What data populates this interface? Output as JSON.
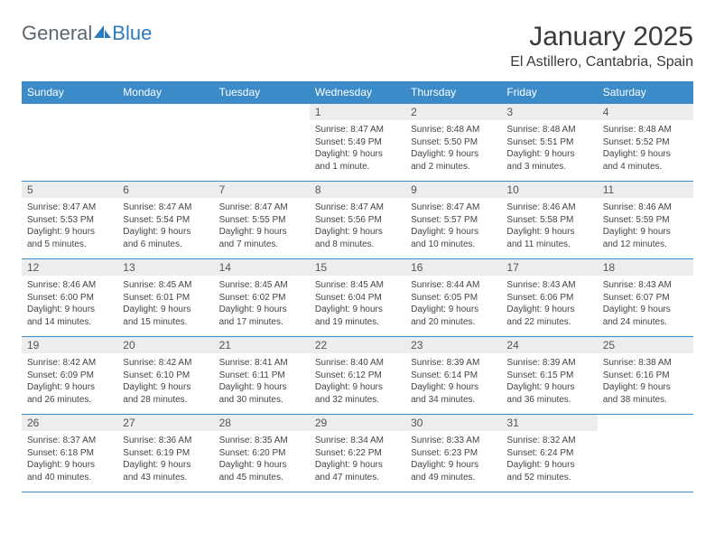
{
  "logo": {
    "text1": "General",
    "text2": "Blue"
  },
  "title": "January 2025",
  "location": "El Astillero, Cantabria, Spain",
  "colors": {
    "header_bg": "#3b8bc8",
    "header_text": "#ffffff",
    "daynum_bg": "#eceded",
    "border": "#3b8bc8",
    "body_text": "#444444",
    "title_text": "#3a3a3a"
  },
  "day_headers": [
    "Sunday",
    "Monday",
    "Tuesday",
    "Wednesday",
    "Thursday",
    "Friday",
    "Saturday"
  ],
  "weeks": [
    [
      {
        "n": "",
        "sr": "",
        "ss": "",
        "dl": ""
      },
      {
        "n": "",
        "sr": "",
        "ss": "",
        "dl": ""
      },
      {
        "n": "",
        "sr": "",
        "ss": "",
        "dl": ""
      },
      {
        "n": "1",
        "sr": "8:47 AM",
        "ss": "5:49 PM",
        "dl": "9 hours and 1 minute."
      },
      {
        "n": "2",
        "sr": "8:48 AM",
        "ss": "5:50 PM",
        "dl": "9 hours and 2 minutes."
      },
      {
        "n": "3",
        "sr": "8:48 AM",
        "ss": "5:51 PM",
        "dl": "9 hours and 3 minutes."
      },
      {
        "n": "4",
        "sr": "8:48 AM",
        "ss": "5:52 PM",
        "dl": "9 hours and 4 minutes."
      }
    ],
    [
      {
        "n": "5",
        "sr": "8:47 AM",
        "ss": "5:53 PM",
        "dl": "9 hours and 5 minutes."
      },
      {
        "n": "6",
        "sr": "8:47 AM",
        "ss": "5:54 PM",
        "dl": "9 hours and 6 minutes."
      },
      {
        "n": "7",
        "sr": "8:47 AM",
        "ss": "5:55 PM",
        "dl": "9 hours and 7 minutes."
      },
      {
        "n": "8",
        "sr": "8:47 AM",
        "ss": "5:56 PM",
        "dl": "9 hours and 8 minutes."
      },
      {
        "n": "9",
        "sr": "8:47 AM",
        "ss": "5:57 PM",
        "dl": "9 hours and 10 minutes."
      },
      {
        "n": "10",
        "sr": "8:46 AM",
        "ss": "5:58 PM",
        "dl": "9 hours and 11 minutes."
      },
      {
        "n": "11",
        "sr": "8:46 AM",
        "ss": "5:59 PM",
        "dl": "9 hours and 12 minutes."
      }
    ],
    [
      {
        "n": "12",
        "sr": "8:46 AM",
        "ss": "6:00 PM",
        "dl": "9 hours and 14 minutes."
      },
      {
        "n": "13",
        "sr": "8:45 AM",
        "ss": "6:01 PM",
        "dl": "9 hours and 15 minutes."
      },
      {
        "n": "14",
        "sr": "8:45 AM",
        "ss": "6:02 PM",
        "dl": "9 hours and 17 minutes."
      },
      {
        "n": "15",
        "sr": "8:45 AM",
        "ss": "6:04 PM",
        "dl": "9 hours and 19 minutes."
      },
      {
        "n": "16",
        "sr": "8:44 AM",
        "ss": "6:05 PM",
        "dl": "9 hours and 20 minutes."
      },
      {
        "n": "17",
        "sr": "8:43 AM",
        "ss": "6:06 PM",
        "dl": "9 hours and 22 minutes."
      },
      {
        "n": "18",
        "sr": "8:43 AM",
        "ss": "6:07 PM",
        "dl": "9 hours and 24 minutes."
      }
    ],
    [
      {
        "n": "19",
        "sr": "8:42 AM",
        "ss": "6:09 PM",
        "dl": "9 hours and 26 minutes."
      },
      {
        "n": "20",
        "sr": "8:42 AM",
        "ss": "6:10 PM",
        "dl": "9 hours and 28 minutes."
      },
      {
        "n": "21",
        "sr": "8:41 AM",
        "ss": "6:11 PM",
        "dl": "9 hours and 30 minutes."
      },
      {
        "n": "22",
        "sr": "8:40 AM",
        "ss": "6:12 PM",
        "dl": "9 hours and 32 minutes."
      },
      {
        "n": "23",
        "sr": "8:39 AM",
        "ss": "6:14 PM",
        "dl": "9 hours and 34 minutes."
      },
      {
        "n": "24",
        "sr": "8:39 AM",
        "ss": "6:15 PM",
        "dl": "9 hours and 36 minutes."
      },
      {
        "n": "25",
        "sr": "8:38 AM",
        "ss": "6:16 PM",
        "dl": "9 hours and 38 minutes."
      }
    ],
    [
      {
        "n": "26",
        "sr": "8:37 AM",
        "ss": "6:18 PM",
        "dl": "9 hours and 40 minutes."
      },
      {
        "n": "27",
        "sr": "8:36 AM",
        "ss": "6:19 PM",
        "dl": "9 hours and 43 minutes."
      },
      {
        "n": "28",
        "sr": "8:35 AM",
        "ss": "6:20 PM",
        "dl": "9 hours and 45 minutes."
      },
      {
        "n": "29",
        "sr": "8:34 AM",
        "ss": "6:22 PM",
        "dl": "9 hours and 47 minutes."
      },
      {
        "n": "30",
        "sr": "8:33 AM",
        "ss": "6:23 PM",
        "dl": "9 hours and 49 minutes."
      },
      {
        "n": "31",
        "sr": "8:32 AM",
        "ss": "6:24 PM",
        "dl": "9 hours and 52 minutes."
      },
      {
        "n": "",
        "sr": "",
        "ss": "",
        "dl": ""
      }
    ]
  ],
  "labels": {
    "sunrise": "Sunrise:",
    "sunset": "Sunset:",
    "daylight": "Daylight:"
  }
}
